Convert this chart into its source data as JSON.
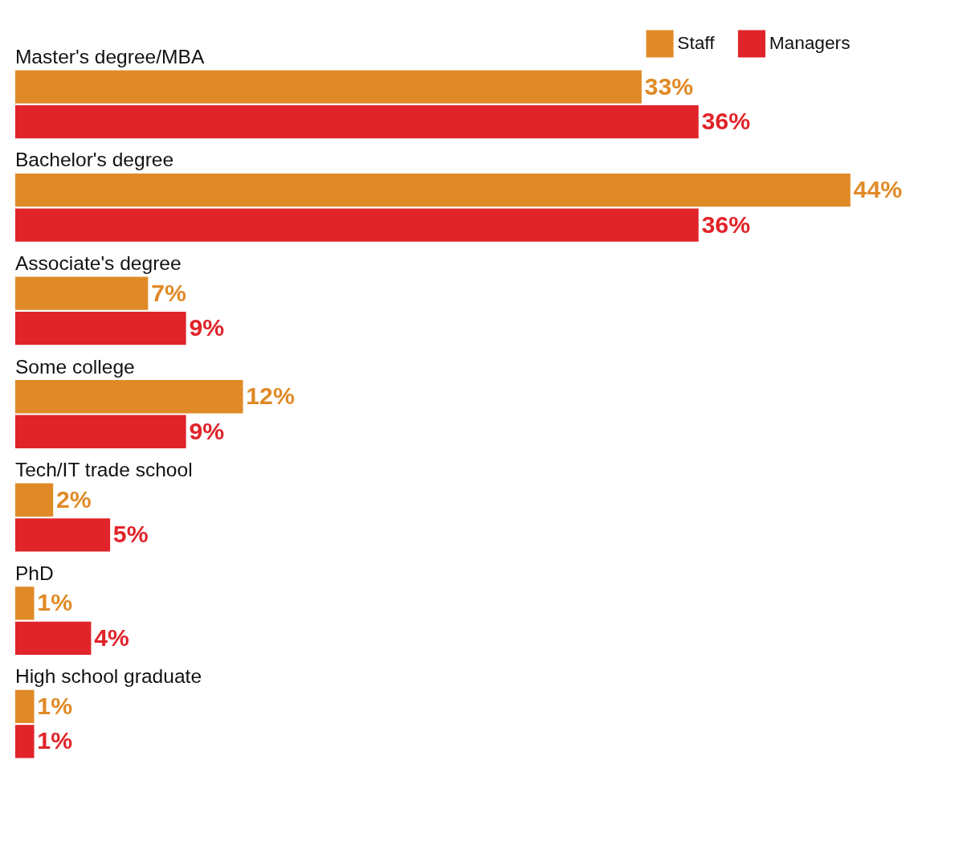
{
  "chart_data": {
    "type": "bar",
    "orientation": "horizontal",
    "legend": "top right",
    "categories": [
      "Master's degree/MBA",
      "Bachelor's degree",
      "Associate's degree",
      "Some college",
      "Tech/IT trade school",
      "PhD",
      "High school graduate"
    ],
    "series": [
      {
        "name": "Staff",
        "color": "#e08a27",
        "values": [
          33,
          44,
          7,
          12,
          2,
          1,
          1
        ],
        "value_labels": [
          "33%",
          "44%",
          "7%",
          "12%",
          "2%",
          "1%",
          "1%"
        ]
      },
      {
        "name": "Managers",
        "color": "#e0242a",
        "values": [
          36,
          36,
          9,
          9,
          5,
          4,
          1
        ],
        "value_labels": [
          "36%",
          "36%",
          "9%",
          "9%",
          "5%",
          "4%",
          "1%"
        ]
      }
    ]
  }
}
